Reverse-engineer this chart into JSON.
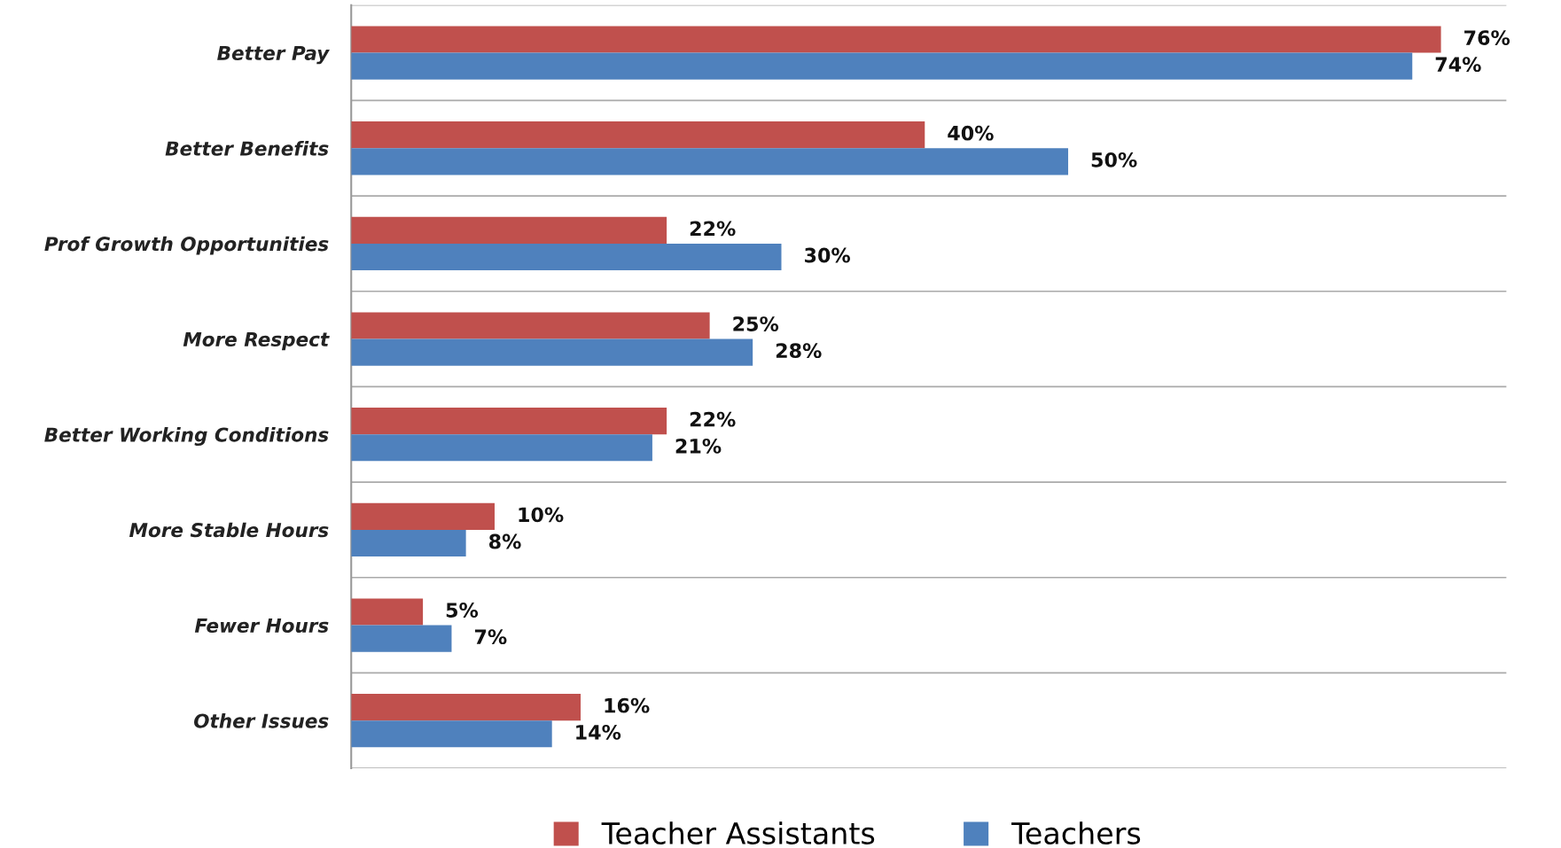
{
  "chart_data": {
    "type": "bar",
    "orientation": "horizontal",
    "categories": [
      "Better Pay",
      "Better Benefits",
      "Prof Growth Opportunities",
      "More Respect",
      "Better Working Conditions",
      "More Stable Hours",
      "Fewer Hours",
      "Other Issues"
    ],
    "series": [
      {
        "name": "Teacher Assistants",
        "color": "#c0504d",
        "values": [
          76,
          40,
          22,
          25,
          22,
          10,
          5,
          16
        ],
        "value_labels": [
          "76%",
          "40%",
          "22%",
          "25%",
          "22%",
          "10%",
          "5%",
          "16%"
        ]
      },
      {
        "name": "Teachers",
        "color": "#4f81bd",
        "values": [
          74,
          50,
          30,
          28,
          21,
          8,
          7,
          14
        ],
        "value_labels": [
          "74%",
          "50%",
          "30%",
          "28%",
          "21%",
          "8%",
          "7%",
          "14%"
        ]
      }
    ],
    "grid": "y",
    "legend": "bottom",
    "tick_labels": "y"
  }
}
